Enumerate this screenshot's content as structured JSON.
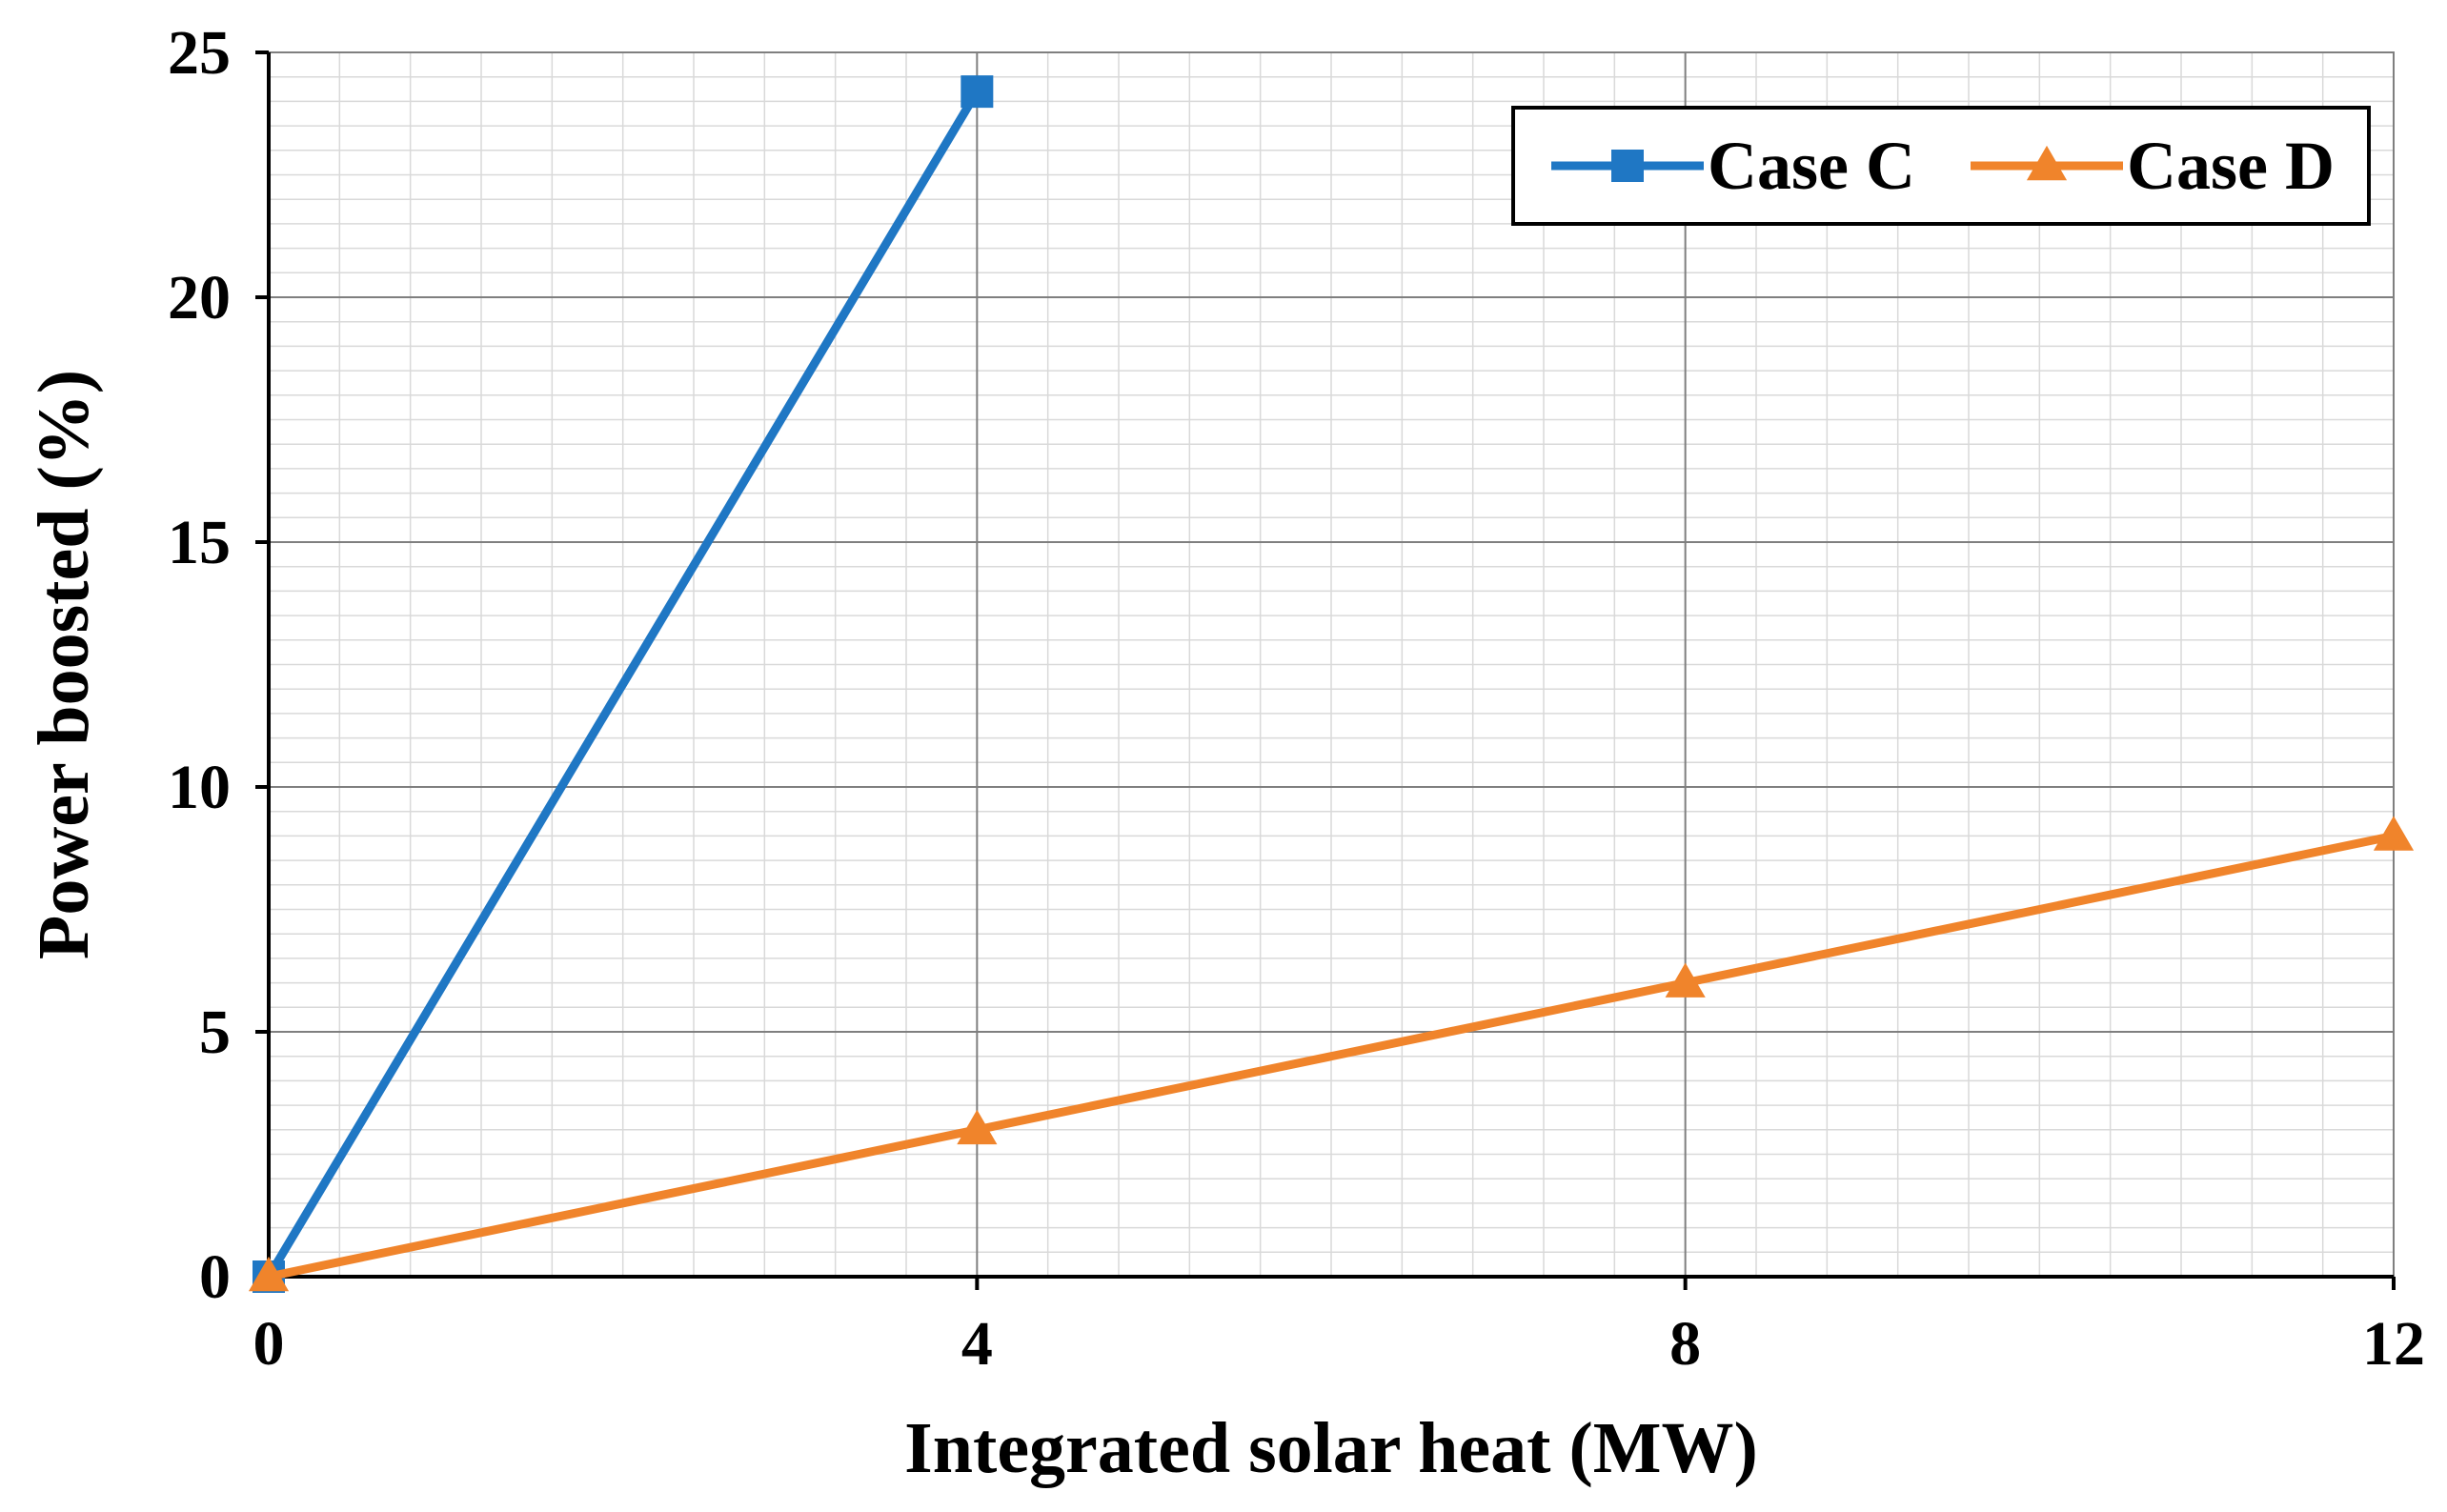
{
  "chart_data": {
    "type": "line",
    "title": "",
    "xlabel": "Integrated solar heat (MW)",
    "ylabel": "Power boosted (%)",
    "xlim": [
      0,
      12
    ],
    "ylim": [
      0,
      25
    ],
    "xticks": [
      0,
      4,
      8,
      12
    ],
    "yticks": [
      0,
      5,
      10,
      15,
      20,
      25
    ],
    "x_tick_labels": [
      "0",
      "4",
      "8",
      "12"
    ],
    "y_tick_labels": [
      "0",
      "5",
      "10",
      "15",
      "20",
      "25"
    ],
    "grid": true,
    "minor_grid": true,
    "legend_position": "top-right",
    "series": [
      {
        "name": "Case C",
        "color": "#1F77C4",
        "marker": "square",
        "x": [
          0,
          4
        ],
        "y": [
          0,
          24.2
        ]
      },
      {
        "name": "Case D",
        "color": "#F0842B",
        "marker": "triangle",
        "x": [
          0,
          4,
          8,
          12
        ],
        "y": [
          0,
          3.0,
          6.0,
          9.0
        ]
      }
    ]
  }
}
